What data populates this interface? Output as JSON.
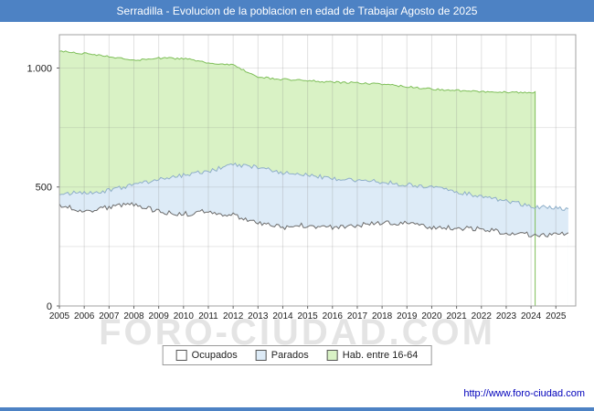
{
  "watermark": "FORO-CIUDAD.COM",
  "footer_link": "http://www.foro-ciudad.com",
  "colors": {
    "titlebar": "#4d82c4",
    "link": "#0000bb",
    "grid": "#888888",
    "plot_border": "#a0a0a0"
  },
  "chart_data": {
    "type": "area",
    "title": "Serradilla - Evolucion de la poblacion en edad de Trabajar Agosto de 2025",
    "xlabel": "",
    "ylabel": "",
    "x": [
      2005,
      2006,
      2007,
      2008,
      2009,
      2010,
      2011,
      2012,
      2013,
      2014,
      2015,
      2016,
      2017,
      2018,
      2019,
      2020,
      2021,
      2022,
      2023,
      2024,
      2025
    ],
    "x_ticks": [
      2005,
      2006,
      2007,
      2008,
      2009,
      2010,
      2011,
      2012,
      2013,
      2014,
      2015,
      2016,
      2017,
      2018,
      2019,
      2020,
      2021,
      2022,
      2023,
      2024,
      2025
    ],
    "x_range": [
      2005,
      2025.8
    ],
    "x_end": 2025.58,
    "ylim": [
      0,
      1140
    ],
    "y_ticks": [
      {
        "value": 0,
        "label": "0"
      },
      {
        "value": 500,
        "label": "500"
      },
      {
        "value": 1000,
        "label": "1.000"
      }
    ],
    "grid_y": [
      250,
      500,
      750,
      1000
    ],
    "legend_position": "bottom",
    "series": [
      {
        "name": "Ocupados",
        "fill": "#ffffff",
        "stroke": "#6b6b6b",
        "values": [
          420,
          400,
          415,
          430,
          395,
          385,
          400,
          380,
          345,
          330,
          340,
          330,
          340,
          350,
          345,
          330,
          330,
          320,
          310,
          300,
          300
        ]
      },
      {
        "name": "Parados",
        "fill": "#ddebf7",
        "stroke": "#8fafc9",
        "stacked_on": "Ocupados",
        "values": [
          55,
          75,
          70,
          80,
          135,
          165,
          165,
          215,
          240,
          230,
          210,
          205,
          190,
          170,
          165,
          170,
          150,
          140,
          130,
          120,
          110
        ]
      },
      {
        "name": "Hab. entre 16-64",
        "fill": "#d9f2c5",
        "stroke": "#7fbf5a",
        "ends_at": 2024.2,
        "values": [
          1070,
          1062,
          1048,
          1032,
          1042,
          1040,
          1020,
          1012,
          962,
          952,
          948,
          940,
          938,
          932,
          922,
          912,
          905,
          900,
          898,
          898,
          null
        ]
      }
    ]
  }
}
